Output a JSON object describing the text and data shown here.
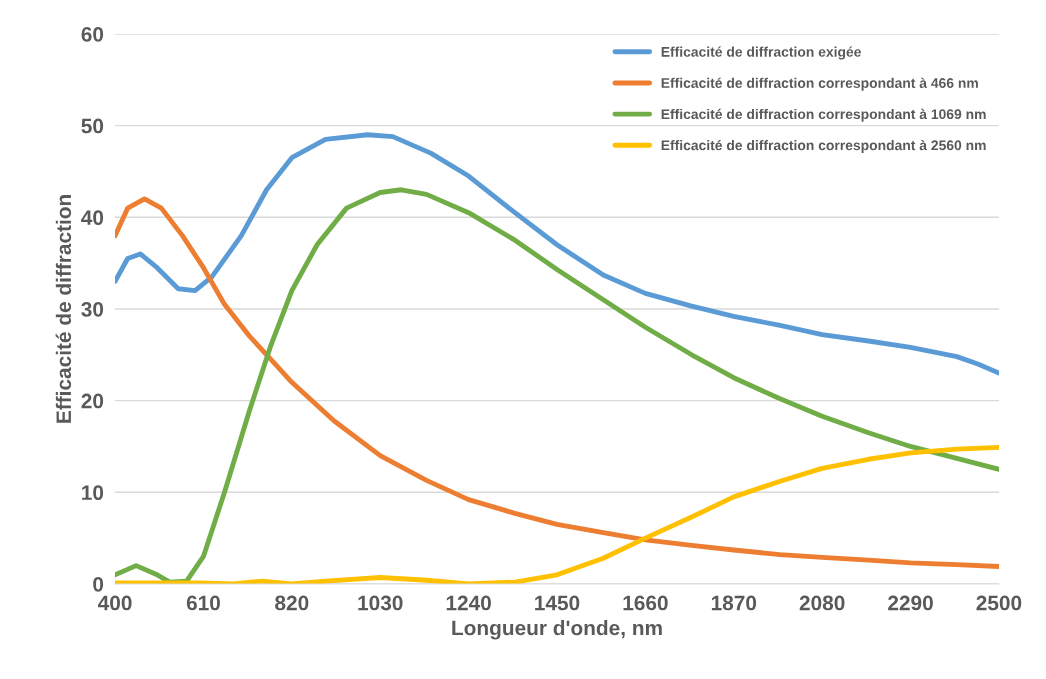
{
  "chart_data": {
    "type": "line",
    "xlabel": "Longueur d'onde, nm",
    "ylabel": "Efficacité de diffraction",
    "xlim": [
      400,
      2500
    ],
    "xticks": [
      400,
      610,
      820,
      1030,
      1240,
      1450,
      1660,
      1870,
      2080,
      2290,
      2500
    ],
    "ylim": [
      0,
      60
    ],
    "yticks": [
      0,
      10,
      20,
      30,
      40,
      50,
      60
    ],
    "grid": "y",
    "legend": "top right",
    "line_style": "solid",
    "marker": "none",
    "series": [
      {
        "name": "Efficacité de diffraction exigée",
        "color": "#5b9bd5",
        "x": [
          400,
          430,
          460,
          500,
          550,
          590,
          630,
          700,
          760,
          820,
          900,
          1000,
          1060,
          1150,
          1240,
          1350,
          1450,
          1560,
          1660,
          1770,
          1870,
          1980,
          2080,
          2190,
          2290,
          2400,
          2450,
          2500
        ],
        "values": [
          33,
          35.5,
          36,
          34.5,
          32.2,
          32,
          33.5,
          38,
          43,
          46.5,
          48.5,
          49,
          48.8,
          47,
          44.5,
          40.5,
          37,
          33.7,
          31.7,
          30.3,
          29.2,
          28.2,
          27.2,
          26.5,
          25.8,
          24.8,
          24,
          23
        ]
      },
      {
        "name": "Efficacité de diffraction correspondant à 466 nm",
        "color": "#ed7d31",
        "x": [
          400,
          430,
          470,
          510,
          560,
          610,
          660,
          720,
          780,
          820,
          920,
          1030,
          1140,
          1240,
          1350,
          1450,
          1560,
          1660,
          1770,
          1870,
          1980,
          2080,
          2190,
          2290,
          2400,
          2500
        ],
        "values": [
          38,
          41,
          42,
          41,
          38,
          34.5,
          30.5,
          27,
          24,
          22,
          17.8,
          14,
          11.3,
          9.2,
          7.7,
          6.5,
          5.6,
          4.8,
          4.2,
          3.7,
          3.2,
          2.9,
          2.6,
          2.3,
          2.1,
          1.9
        ]
      },
      {
        "name": "Efficacité de diffraction correspondant à 1069 nm",
        "color": "#70ad47",
        "x": [
          400,
          450,
          500,
          530,
          570,
          610,
          660,
          720,
          770,
          820,
          880,
          950,
          1030,
          1080,
          1140,
          1240,
          1350,
          1450,
          1560,
          1660,
          1770,
          1870,
          1980,
          2080,
          2190,
          2290,
          2400,
          2500
        ],
        "values": [
          1,
          2,
          1,
          0.2,
          0.3,
          3,
          10,
          19,
          26,
          32,
          37,
          41,
          42.7,
          43,
          42.5,
          40.5,
          37.5,
          34.3,
          31,
          28,
          25,
          22.5,
          20.2,
          18.3,
          16.5,
          15,
          13.7,
          12.5
        ]
      },
      {
        "name": "Efficacité de diffraction correspondant à 2560 nm",
        "color": "#ffc000",
        "x": [
          400,
          500,
          600,
          680,
          750,
          820,
          900,
          1030,
          1140,
          1240,
          1350,
          1450,
          1560,
          1660,
          1770,
          1870,
          1980,
          2080,
          2190,
          2290,
          2400,
          2500
        ],
        "values": [
          0.1,
          0.1,
          0.1,
          0,
          0.3,
          0,
          0.3,
          0.7,
          0.4,
          0,
          0.2,
          1,
          2.8,
          5,
          7.3,
          9.5,
          11.2,
          12.6,
          13.6,
          14.3,
          14.7,
          14.9
        ]
      }
    ]
  }
}
